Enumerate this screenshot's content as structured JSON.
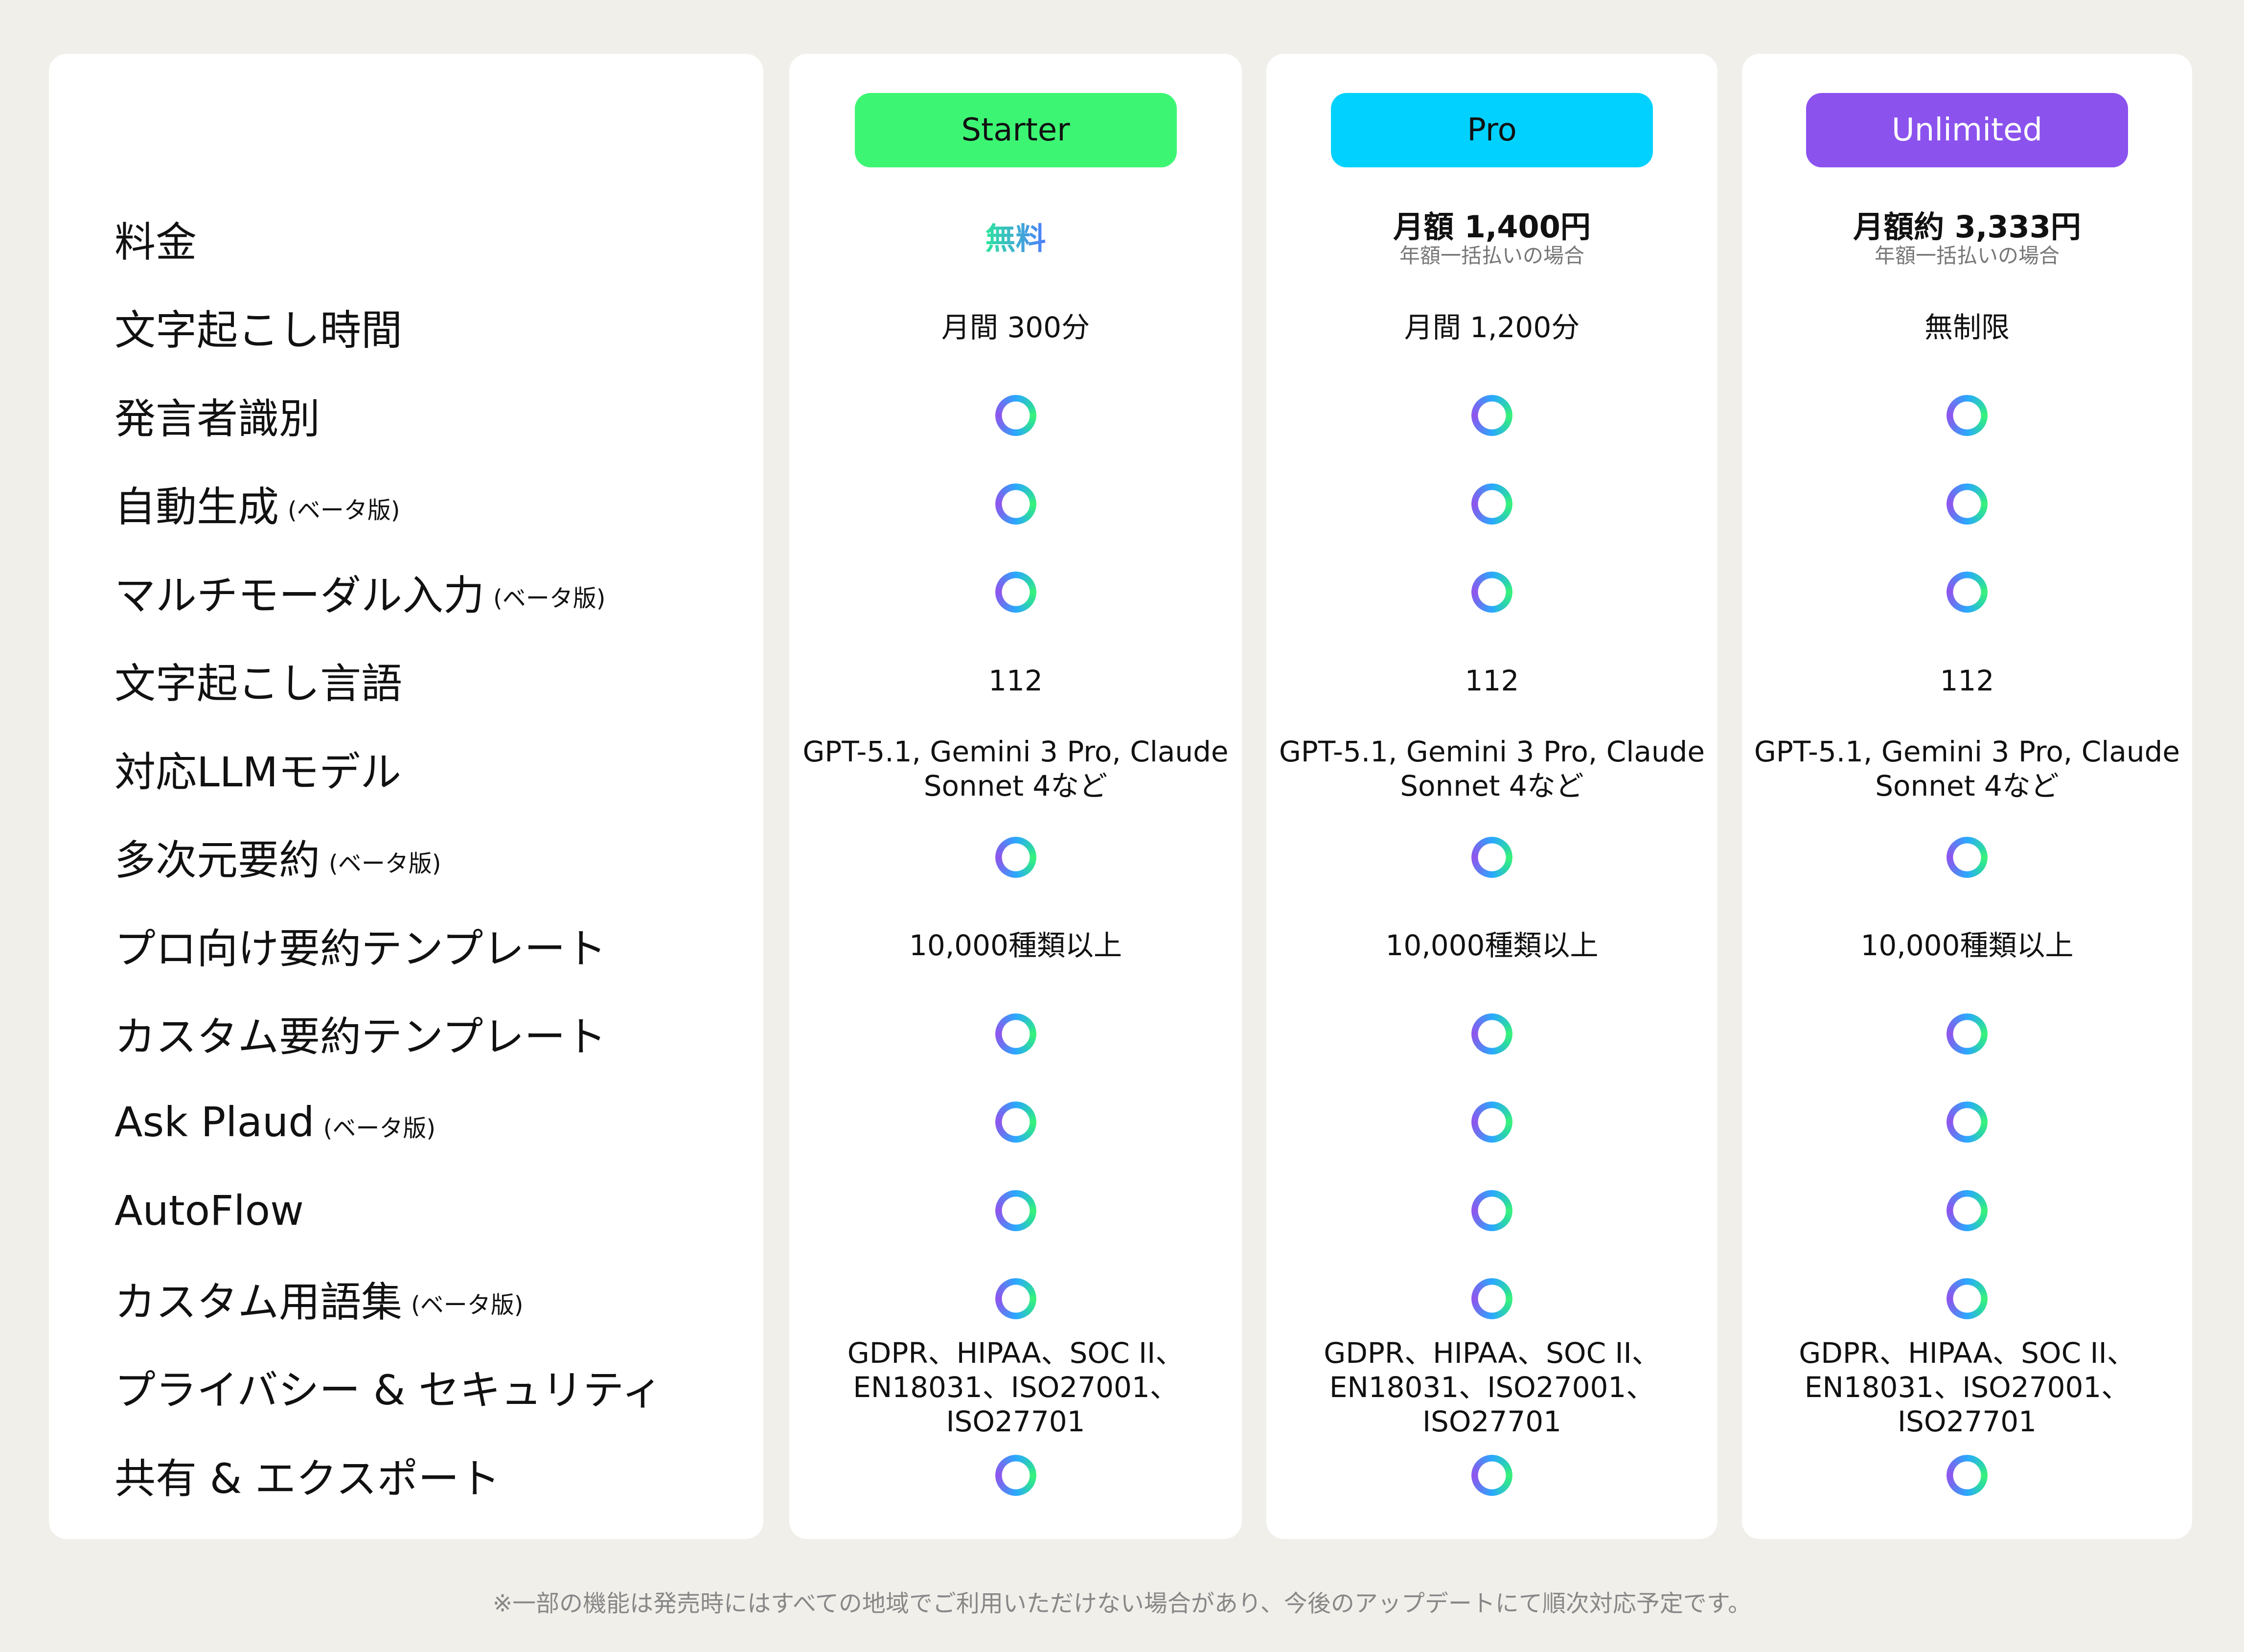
{
  "colors": {
    "starter": "#3cf673",
    "pro": "#00d1ff",
    "unlimited": "#8b52ee",
    "check_gradient": [
      "#8f55ee",
      "#2aa8ff",
      "#38f37a"
    ]
  },
  "features": [
    {
      "label": "料金",
      "beta": ""
    },
    {
      "label": "文字起こし時間",
      "beta": ""
    },
    {
      "label": "発言者識別",
      "beta": ""
    },
    {
      "label": "自動生成",
      "beta": "(ベータ版)"
    },
    {
      "label": "マルチモーダル入力",
      "beta": "(ベータ版)"
    },
    {
      "label": "文字起こし言語",
      "beta": ""
    },
    {
      "label": "対応LLMモデル",
      "beta": ""
    },
    {
      "label": "多次元要約",
      "beta": "(ベータ版)"
    },
    {
      "label": "プロ向け要約テンプレート",
      "beta": ""
    },
    {
      "label": "カスタム要約テンプレート",
      "beta": ""
    },
    {
      "label": "Ask Plaud",
      "beta": "(ベータ版)"
    },
    {
      "label": "AutoFlow",
      "beta": ""
    },
    {
      "label": "カスタム用語集",
      "beta": "(ベータ版)"
    },
    {
      "label": "プライバシー & セキュリティ",
      "beta": ""
    },
    {
      "label": "共有 & エクスポート",
      "beta": ""
    }
  ],
  "plans": [
    {
      "name": "Starter",
      "price": "無料",
      "price_note": "",
      "transcription_time": "月間 300分",
      "languages": "112",
      "llm_line1": "GPT-5.1, Gemini 3 Pro, Claude",
      "llm_line2": "Sonnet 4など",
      "templates": "10,000種類以上",
      "security_line1": "GDPR、HIPAA、SOC II、",
      "security_line2": "EN18031、ISO27001、ISO27701"
    },
    {
      "name": "Pro",
      "price": "月額 1,400円",
      "price_note": "年額一括払いの場合",
      "transcription_time": "月間 1,200分",
      "languages": "112",
      "llm_line1": "GPT-5.1, Gemini 3 Pro, Claude",
      "llm_line2": "Sonnet 4など",
      "templates": "10,000種類以上",
      "security_line1": "GDPR、HIPAA、SOC II、",
      "security_line2": "EN18031、ISO27001、ISO27701"
    },
    {
      "name": "Unlimited",
      "price": "月額約 3,333円",
      "price_note": "年額一括払いの場合",
      "transcription_time": "無制限",
      "languages": "112",
      "llm_line1": "GPT-5.1, Gemini 3 Pro, Claude",
      "llm_line2": "Sonnet 4など",
      "templates": "10,000種類以上",
      "security_line1": "GDPR、HIPAA、SOC II、",
      "security_line2": "EN18031、ISO27001、ISO27701"
    }
  ],
  "footnote": "※一部の機能は発売時にはすべての地域でご利用いただけない場合があり、今後のアップデートにて順次対応予定です。"
}
